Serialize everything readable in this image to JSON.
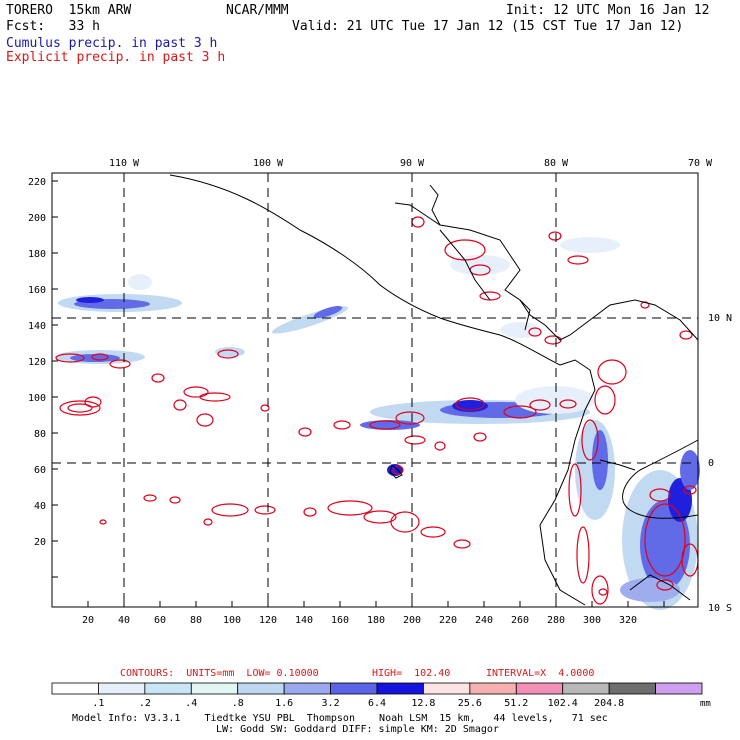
{
  "header": {
    "model_name": "TORERO  15km ARW",
    "center": "NCAR/MMM",
    "init": "Init: 12 UTC Mon 16 Jan 12",
    "fcst": "Fcst:   33 h",
    "valid": "Valid: 21 UTC Tue 17 Jan 12 (15 CST Tue 17 Jan 12)",
    "field_cumulus": "Cumulus precip. in past 3 h",
    "field_explicit": "Explicit precip. in past 3 h"
  },
  "colors": {
    "cumulus_text": "#1a1aa6",
    "explicit_text": "#d81818",
    "contour": "#e0001c",
    "coast": "#000000"
  },
  "map": {
    "lon_labels": [
      "110 W",
      "100 W",
      "90 W",
      "80 W",
      "70 W"
    ],
    "lat_labels": [
      "10 N",
      "0",
      "10 S"
    ],
    "y_ticks": [
      "220",
      "200",
      "180",
      "160",
      "140",
      "120",
      "100",
      "80",
      "60",
      "40",
      "20"
    ],
    "x_ticks": [
      "20",
      "40",
      "60",
      "80",
      "100",
      "120",
      "140",
      "160",
      "180",
      "200",
      "220",
      "240",
      "260",
      "280",
      "300",
      "320"
    ]
  },
  "contours_info": {
    "label": "CONTOURS:  UNITS=mm  LOW= 0.10000",
    "high": "HIGH=  102.40",
    "interval": "INTERVAL=X  4.0000"
  },
  "legend": {
    "colors": [
      "#ffffff",
      "#e6f0fa",
      "#c9e6f6",
      "#e2f6f4",
      "#bfd8f2",
      "#9aa8ee",
      "#5a64e6",
      "#1414dc",
      "#fde4e4",
      "#f7b0b0",
      "#f290b8",
      "#b8b8b8",
      "#6e6e6e",
      "#d0a0f0"
    ],
    "labels": [
      ".1",
      ".2",
      ".4",
      ".8",
      "1.6",
      "3.2",
      "6.4",
      "12.8",
      "25.6",
      "51.2",
      "102.4",
      "204.8"
    ],
    "unit": "mm"
  },
  "footer": {
    "line1": "Model Info: V3.3.1    Tiedtke YSU PBL  Thompson    Noah LSM  15 km,   44 levels,   71 sec",
    "line2": "LW: Godd SW: Goddard DIFF: simple KM: 2D Smagor"
  }
}
